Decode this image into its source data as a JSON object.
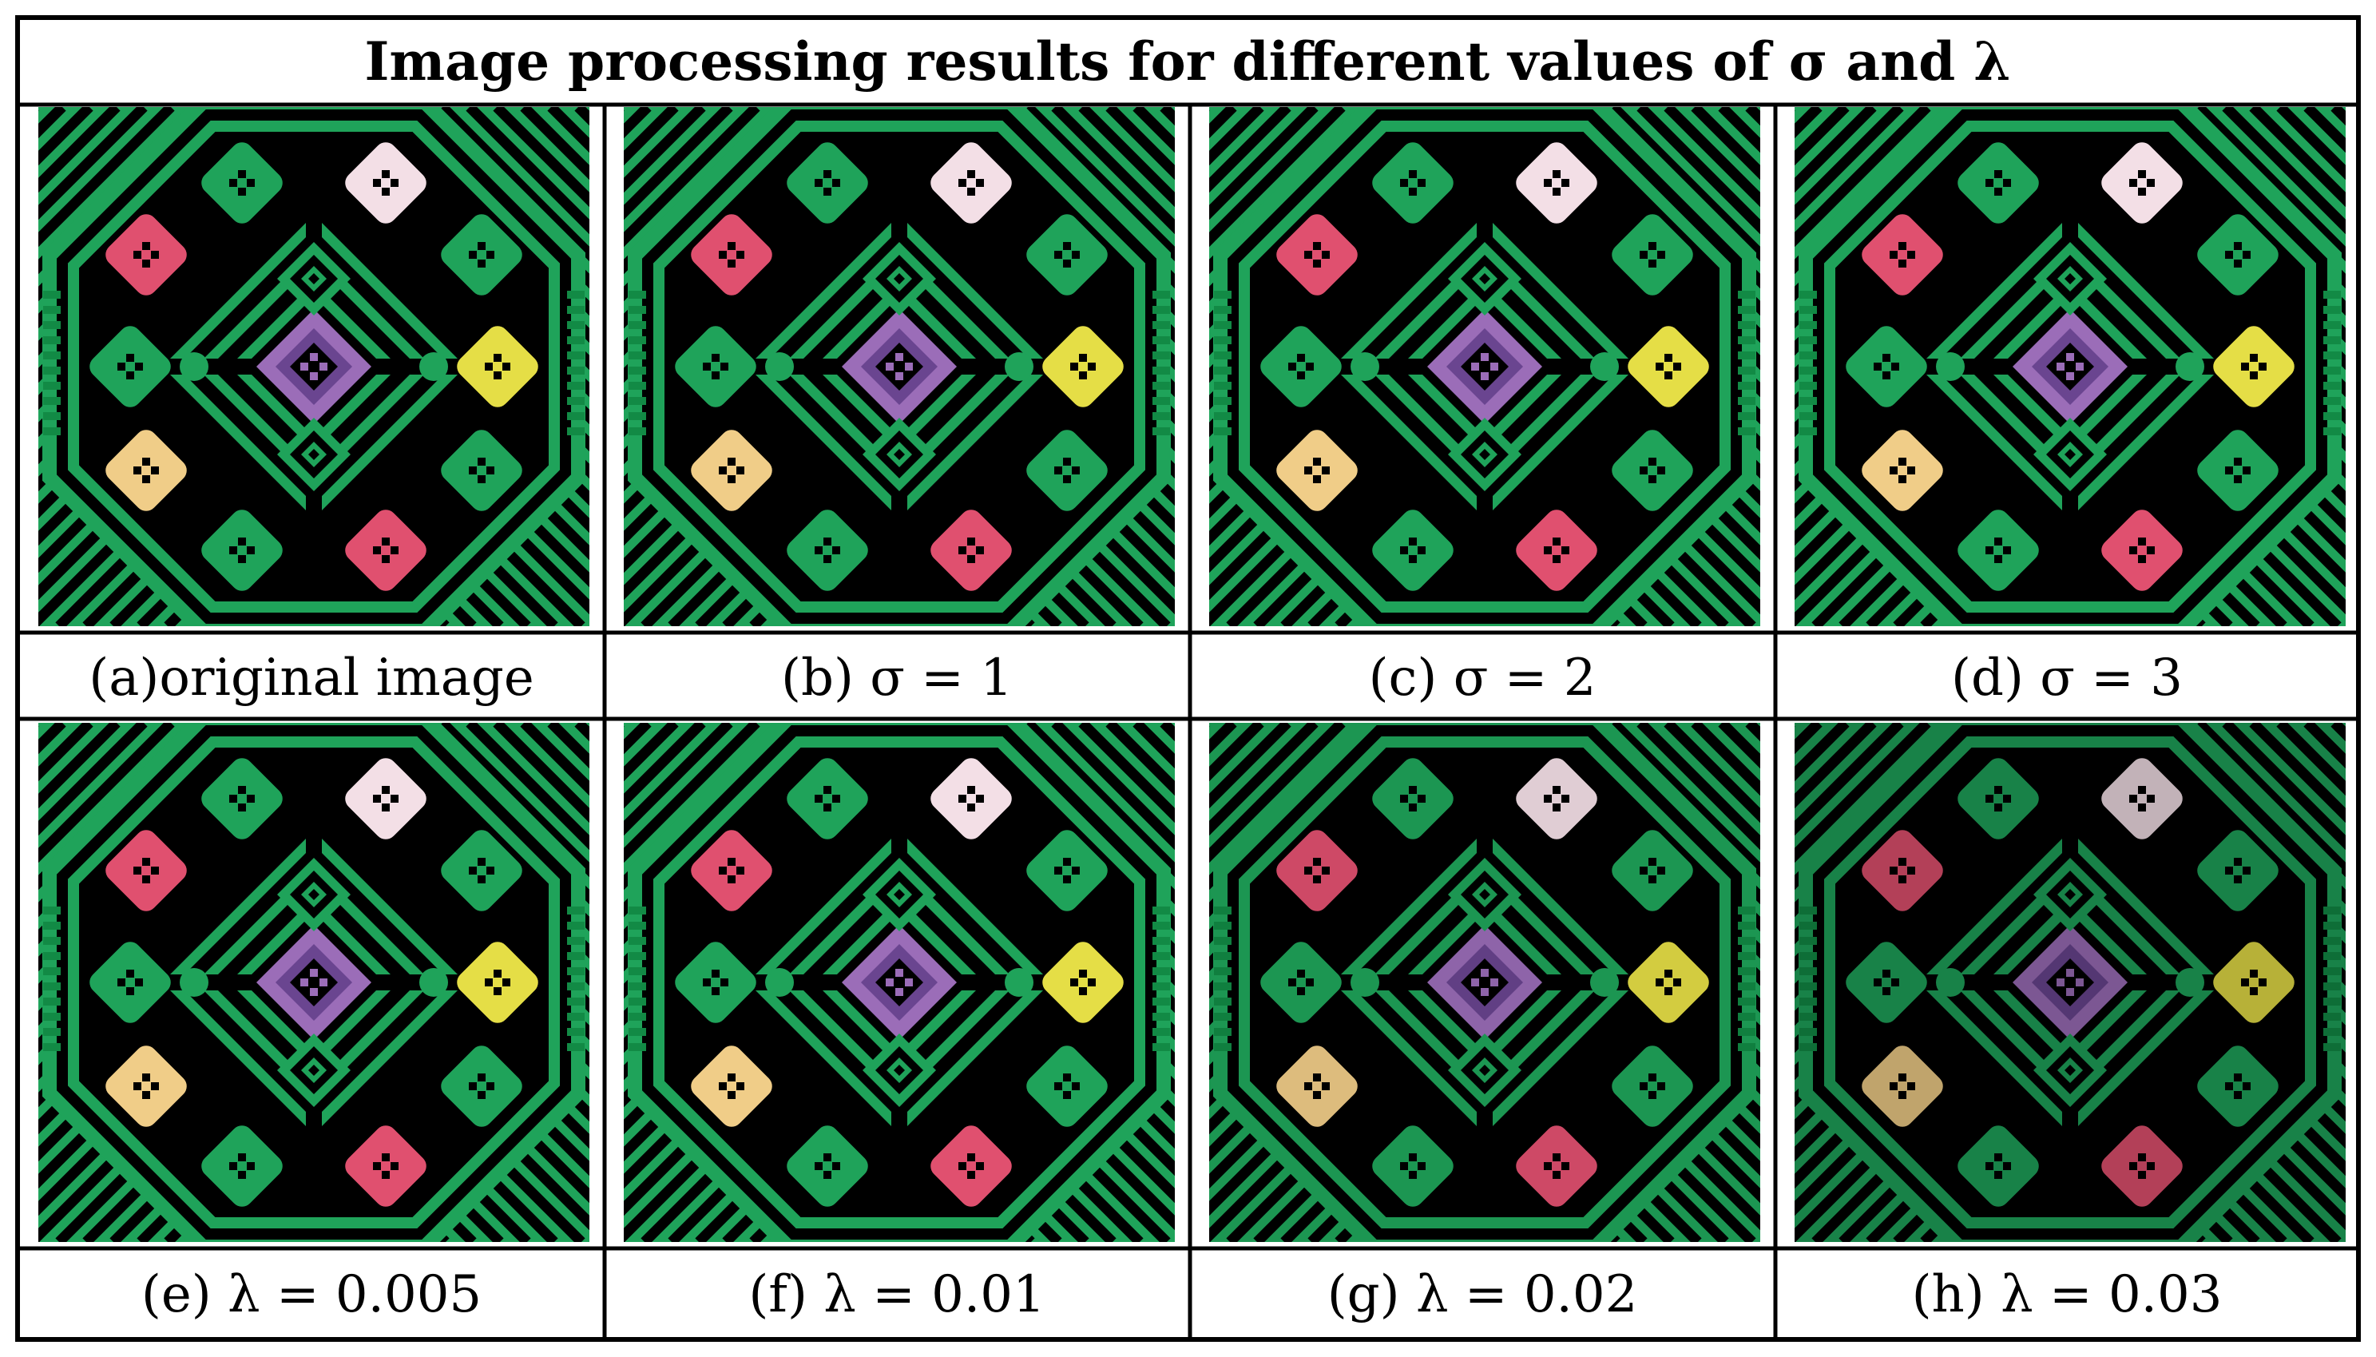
{
  "title": "Image processing results for different values of σ and λ",
  "panels": [
    {
      "caption": "(a)original image",
      "variant": "original",
      "dim": 1.0
    },
    {
      "caption": "(b) σ = 1",
      "variant": "sigma",
      "dim": 1.0
    },
    {
      "caption": "(c) σ = 2",
      "variant": "sigma",
      "dim": 1.0
    },
    {
      "caption": "(d) σ = 3",
      "variant": "sigma",
      "dim": 1.0
    },
    {
      "caption": "(e) λ = 0.005",
      "variant": "lambda",
      "dim": 1.0
    },
    {
      "caption": "(f) λ = 0.01",
      "variant": "lambda",
      "dim": 1.0
    },
    {
      "caption": "(g) λ = 0.02",
      "variant": "lambda",
      "dim": 0.92
    },
    {
      "caption": "(h) λ = 0.03",
      "variant": "lambda",
      "dim": 0.8
    }
  ],
  "colors": {
    "background": "#000000",
    "green": "#1fa35a",
    "dark_green": "#128a45",
    "pink_light": "#f3dfe6",
    "pink": "#e0506f",
    "yellow": "#e5de46",
    "peach": "#f0cd88",
    "purple": "#9b6db8",
    "purple_dark": "#6a4590",
    "border": "#000000"
  },
  "icons": {
    "pattern": "octagonal-green-pattern-image"
  }
}
